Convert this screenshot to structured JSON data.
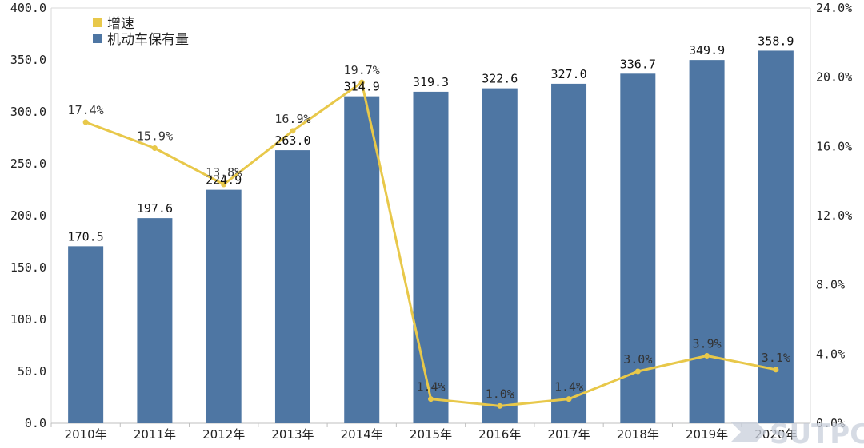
{
  "chart_data": {
    "type": "bar",
    "categories": [
      "2010年",
      "2011年",
      "2012年",
      "2013年",
      "2014年",
      "2015年",
      "2016年",
      "2017年",
      "2018年",
      "2019年",
      "2020年"
    ],
    "series": [
      {
        "name": "机动车保有量",
        "type": "bar",
        "axis": "left",
        "values": [
          170.5,
          197.6,
          224.9,
          263.0,
          314.9,
          319.3,
          322.6,
          327.0,
          336.7,
          349.9,
          358.9
        ],
        "labels": [
          "170.5",
          "197.6",
          "224.9",
          "263.0",
          "314.9",
          "319.3",
          "322.6",
          "327.0",
          "336.7",
          "349.9",
          "358.9"
        ]
      },
      {
        "name": "增速",
        "type": "line",
        "axis": "right",
        "values": [
          17.4,
          15.9,
          13.8,
          16.9,
          19.7,
          1.4,
          1.0,
          1.4,
          3.0,
          3.9,
          3.1
        ],
        "labels": [
          "17.4%",
          "15.9%",
          "13.8%",
          "16.9%",
          "19.7%",
          "1.4%",
          "1.0%",
          "1.4%",
          "3.0%",
          "3.9%",
          "3.1%"
        ]
      }
    ],
    "y_left": {
      "lim": [
        0,
        400
      ],
      "ticks": [
        "0.0",
        "50.0",
        "100.0",
        "150.0",
        "200.0",
        "250.0",
        "300.0",
        "350.0",
        "400.0"
      ]
    },
    "y_right": {
      "lim": [
        0,
        24
      ],
      "ticks": [
        "0.0%",
        "4.0%",
        "8.0%",
        "12.0%",
        "16.0%",
        "20.0%",
        "24.0%"
      ]
    },
    "legend_position": "top-left",
    "grid": false,
    "colors": {
      "bar": "#4e76a3",
      "line": "#e8c84a"
    }
  },
  "watermark": {
    "text": "SUTPC"
  }
}
